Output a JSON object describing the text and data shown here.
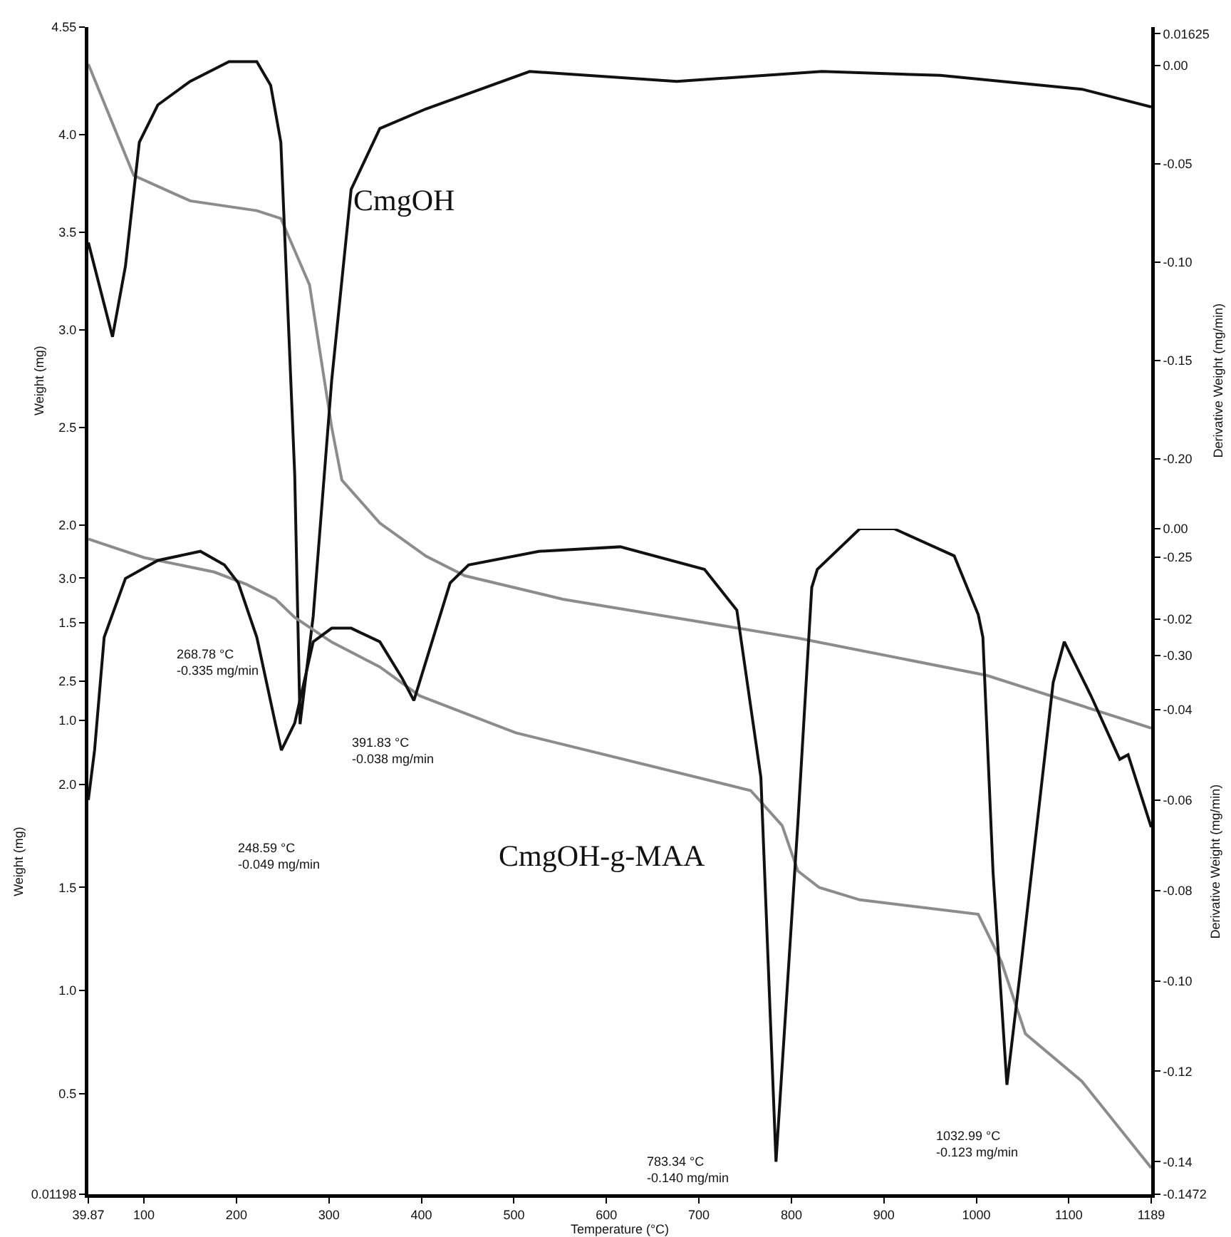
{
  "chart_data": [
    {
      "type": "line",
      "title": "CmgOH",
      "ylabel": "Weight (mg)",
      "y2label": "Derivative Weight (mg/min)",
      "xlim": [
        39.87,
        1189
      ],
      "ylim": [
        0.93,
        4.55
      ],
      "y2lim": [
        -0.34,
        0.0196
      ],
      "yticks": [
        4.55,
        {
          "value": 4.0,
          "label": "4.0"
        },
        3.5,
        {
          "value": 3.0,
          "label": "3.0"
        },
        2.5,
        {
          "value": 2.0,
          "label": "2.0"
        },
        1.5,
        {
          "value": 1.0,
          "label": "1.0"
        }
      ],
      "y2ticks": [
        0.01625,
        {
          "value": 0,
          "label": "0.00"
        },
        -0.05,
        {
          "value": -0.1,
          "label": "-0.10"
        },
        -0.15,
        {
          "value": -0.2,
          "label": "-0.20"
        },
        -0.25,
        {
          "value": -0.3,
          "label": "-0.30"
        }
      ],
      "tick_labels": "y",
      "series": [
        {
          "color": "#8c8c8c",
          "x": [
            39.87,
            89,
            150,
            222,
            248,
            279,
            303,
            314,
            355,
            405,
            447,
            553,
            706,
            808,
            1011,
            1189
          ],
          "values": [
            4.36,
            3.79,
            3.66,
            3.61,
            3.57,
            3.23,
            2.5,
            2.23,
            2.01,
            1.84,
            1.74,
            1.62,
            1.5,
            1.42,
            1.23,
            0.96
          ]
        },
        {
          "color": "#111111",
          "axis": "y2",
          "x": [
            39.87,
            66,
            80,
            95,
            115,
            150,
            192,
            222,
            237,
            248,
            263,
            268.78,
            283,
            303,
            324,
            355,
            405,
            517,
            676,
            833,
            961,
            1114,
            1189
          ],
          "values": [
            -0.09,
            -0.138,
            -0.102,
            -0.039,
            -0.02,
            -0.008,
            0.002,
            0.002,
            -0.01,
            -0.039,
            -0.208,
            -0.335,
            -0.28,
            -0.16,
            -0.063,
            -0.032,
            -0.022,
            -0.003,
            -0.008,
            -0.003,
            -0.005,
            -0.012,
            -0.021
          ]
        }
      ],
      "annotations": [
        "268.78 °C\n-0.335 mg/min"
      ]
    },
    {
      "type": "line",
      "title": "CmgOH-g-MAA",
      "xlabel": "Temperature (°C)",
      "ylabel": "Weight (mg)",
      "y2label": "Derivative Weight (mg/min)",
      "xlim": [
        39.87,
        1189
      ],
      "ylim": [
        0.01198,
        3.24
      ],
      "y2lim": [
        -0.1472,
        0
      ],
      "xticks": [
        39.87,
        100,
        200,
        300,
        400,
        500,
        600,
        700,
        800,
        900,
        1000,
        1100,
        1189
      ],
      "yticks": [
        {
          "value": 3.0,
          "label": "3.0"
        },
        2.5,
        {
          "value": 2.0,
          "label": "2.0"
        },
        1.5,
        {
          "value": 1.0,
          "label": "1.0"
        },
        0.5,
        0.01198
      ],
      "y2ticks": [
        {
          "value": 0,
          "label": "0.00"
        },
        -0.02,
        -0.04,
        -0.06,
        -0.08,
        {
          "value": -0.1,
          "label": "-0.10"
        },
        -0.12,
        -0.14,
        -0.1472
      ],
      "series": [
        {
          "color": "#8c8c8c",
          "x": [
            39.87,
            100,
            176,
            211,
            242,
            263,
            303,
            355,
            398,
            502,
            756,
            790,
            807,
            830,
            874,
            1002,
            1027,
            1053,
            1114,
            1189
          ],
          "values": [
            3.19,
            3.1,
            3.03,
            2.97,
            2.9,
            2.81,
            2.69,
            2.57,
            2.43,
            2.25,
            1.97,
            1.8,
            1.58,
            1.5,
            1.44,
            1.37,
            1.14,
            0.79,
            0.56,
            0.14
          ]
        },
        {
          "color": "#111111",
          "axis": "y2",
          "x": [
            39.87,
            46.6,
            57,
            80,
            115,
            161,
            187,
            202,
            222,
            242,
            248.59,
            263,
            283,
            303,
            324,
            355,
            379,
            391.83,
            431,
            451,
            527,
            615,
            706,
            741,
            767,
            783.34,
            807,
            822,
            828,
            874,
            911,
            976,
            1002,
            1007,
            1018,
            1032.99,
            1048,
            1083,
            1095,
            1124,
            1155,
            1164,
            1189
          ],
          "values": [
            -0.06,
            -0.049,
            -0.024,
            -0.011,
            -0.007,
            -0.005,
            -0.008,
            -0.012,
            -0.024,
            -0.043,
            -0.049,
            -0.043,
            -0.025,
            -0.022,
            -0.022,
            -0.025,
            -0.033,
            -0.038,
            -0.012,
            -0.008,
            -0.005,
            -0.004,
            -0.009,
            -0.018,
            -0.055,
            -0.14,
            -0.065,
            -0.013,
            -0.009,
            0,
            0,
            -0.006,
            -0.019,
            -0.024,
            -0.076,
            -0.123,
            -0.097,
            -0.034,
            -0.025,
            -0.037,
            -0.051,
            -0.05,
            -0.066
          ]
        }
      ],
      "annotations": [
        "248.59 °C\n-0.049 mg/min",
        "391.83 °C\n-0.038 mg/min",
        "783.34 °C\n-0.140 mg/min",
        "1032.99 °C\n-0.123 mg/min"
      ]
    }
  ]
}
